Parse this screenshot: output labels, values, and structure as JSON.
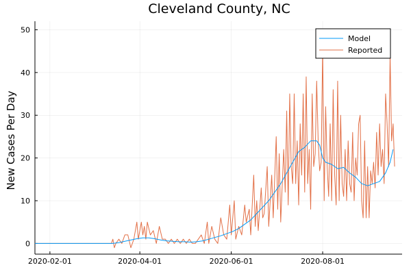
{
  "chart_data": {
    "type": "line",
    "title": "Cleveland County, NC",
    "xlabel": "",
    "ylabel": "New Cases Per Day",
    "x_range": [
      "2020-01-22",
      "2020-09-23"
    ],
    "ylim": [
      -2.5,
      52
    ],
    "x_ticks": [
      "2020-02-01",
      "2020-04-01",
      "2020-06-01",
      "2020-08-01"
    ],
    "y_ticks": [
      0,
      10,
      20,
      30,
      40,
      50
    ],
    "grid": true,
    "legend_position": "top-right",
    "series": [
      {
        "name": "Model",
        "color": "#009AFA",
        "points": [
          [
            "2020-01-22",
            0
          ],
          [
            "2020-03-14",
            0
          ],
          [
            "2020-03-18",
            0.2
          ],
          [
            "2020-03-22",
            0.5
          ],
          [
            "2020-03-26",
            0.8
          ],
          [
            "2020-03-30",
            1.1
          ],
          [
            "2020-04-03",
            1.3
          ],
          [
            "2020-04-07",
            1.3
          ],
          [
            "2020-04-11",
            1.1
          ],
          [
            "2020-04-15",
            0.8
          ],
          [
            "2020-04-19",
            0.6
          ],
          [
            "2020-04-23",
            0.5
          ],
          [
            "2020-04-27",
            0.4
          ],
          [
            "2020-05-01",
            0.4
          ],
          [
            "2020-05-05",
            0.3
          ],
          [
            "2020-05-09",
            0.4
          ],
          [
            "2020-05-13",
            0.6
          ],
          [
            "2020-05-17",
            1.0
          ],
          [
            "2020-05-21",
            1.4
          ],
          [
            "2020-05-25",
            1.8
          ],
          [
            "2020-05-29",
            2.3
          ],
          [
            "2020-06-02",
            2.8
          ],
          [
            "2020-06-06",
            3.5
          ],
          [
            "2020-06-10",
            4.5
          ],
          [
            "2020-06-14",
            5.5
          ],
          [
            "2020-06-18",
            7.0
          ],
          [
            "2020-06-22",
            8.5
          ],
          [
            "2020-06-26",
            10.0
          ],
          [
            "2020-06-30",
            12.0
          ],
          [
            "2020-07-04",
            14.0
          ],
          [
            "2020-07-08",
            16.5
          ],
          [
            "2020-07-12",
            19.0
          ],
          [
            "2020-07-16",
            21.5
          ],
          [
            "2020-07-20",
            22.5
          ],
          [
            "2020-07-24",
            24.0
          ],
          [
            "2020-07-28",
            24.0
          ],
          [
            "2020-07-30",
            23.0
          ],
          [
            "2020-08-01",
            20.0
          ],
          [
            "2020-08-03",
            19.0
          ],
          [
            "2020-08-07",
            18.5
          ],
          [
            "2020-08-11",
            17.5
          ],
          [
            "2020-08-15",
            17.8
          ],
          [
            "2020-08-19",
            16.5
          ],
          [
            "2020-08-23",
            15.5
          ],
          [
            "2020-08-27",
            14.0
          ],
          [
            "2020-08-31",
            13.5
          ],
          [
            "2020-09-04",
            14.0
          ],
          [
            "2020-09-08",
            14.5
          ],
          [
            "2020-09-12",
            16.5
          ],
          [
            "2020-09-15",
            19.0
          ],
          [
            "2020-09-17",
            22.0
          ]
        ]
      },
      {
        "name": "Reported",
        "color": "#E26F46",
        "points": [
          [
            "2020-01-22",
            0
          ],
          [
            "2020-03-13",
            0
          ],
          [
            "2020-03-14",
            1
          ],
          [
            "2020-03-15",
            -1
          ],
          [
            "2020-03-16",
            0
          ],
          [
            "2020-03-18",
            1
          ],
          [
            "2020-03-20",
            0
          ],
          [
            "2020-03-22",
            2
          ],
          [
            "2020-03-24",
            2
          ],
          [
            "2020-03-26",
            -1
          ],
          [
            "2020-03-28",
            1
          ],
          [
            "2020-03-30",
            5
          ],
          [
            "2020-03-31",
            1
          ],
          [
            "2020-04-02",
            5
          ],
          [
            "2020-04-03",
            2
          ],
          [
            "2020-04-04",
            4
          ],
          [
            "2020-04-05",
            1
          ],
          [
            "2020-04-06",
            5
          ],
          [
            "2020-04-08",
            2
          ],
          [
            "2020-04-10",
            3
          ],
          [
            "2020-04-12",
            0
          ],
          [
            "2020-04-14",
            4
          ],
          [
            "2020-04-16",
            1
          ],
          [
            "2020-04-18",
            1
          ],
          [
            "2020-04-20",
            0
          ],
          [
            "2020-04-22",
            1
          ],
          [
            "2020-04-24",
            0
          ],
          [
            "2020-04-26",
            1
          ],
          [
            "2020-04-28",
            0
          ],
          [
            "2020-04-30",
            1
          ],
          [
            "2020-05-02",
            0
          ],
          [
            "2020-05-04",
            1
          ],
          [
            "2020-05-06",
            0
          ],
          [
            "2020-05-08",
            0
          ],
          [
            "2020-05-10",
            1
          ],
          [
            "2020-05-12",
            2
          ],
          [
            "2020-05-14",
            0
          ],
          [
            "2020-05-16",
            5
          ],
          [
            "2020-05-17",
            0
          ],
          [
            "2020-05-19",
            4
          ],
          [
            "2020-05-21",
            1
          ],
          [
            "2020-05-23",
            0
          ],
          [
            "2020-05-25",
            6
          ],
          [
            "2020-05-27",
            2
          ],
          [
            "2020-05-29",
            1
          ],
          [
            "2020-05-31",
            9
          ],
          [
            "2020-06-01",
            2
          ],
          [
            "2020-06-03",
            10
          ],
          [
            "2020-06-04",
            1
          ],
          [
            "2020-06-06",
            4
          ],
          [
            "2020-06-08",
            2
          ],
          [
            "2020-06-10",
            9
          ],
          [
            "2020-06-11",
            5
          ],
          [
            "2020-06-13",
            8
          ],
          [
            "2020-06-14",
            2
          ],
          [
            "2020-06-16",
            16
          ],
          [
            "2020-06-17",
            4
          ],
          [
            "2020-06-18",
            10
          ],
          [
            "2020-06-19",
            3
          ],
          [
            "2020-06-21",
            13
          ],
          [
            "2020-06-22",
            6
          ],
          [
            "2020-06-23",
            7
          ],
          [
            "2020-06-25",
            18
          ],
          [
            "2020-06-26",
            4
          ],
          [
            "2020-06-27",
            10
          ],
          [
            "2020-06-28",
            16
          ],
          [
            "2020-06-29",
            6
          ],
          [
            "2020-07-01",
            25
          ],
          [
            "2020-07-02",
            8
          ],
          [
            "2020-07-03",
            21
          ],
          [
            "2020-07-04",
            5
          ],
          [
            "2020-07-06",
            22
          ],
          [
            "2020-07-07",
            12
          ],
          [
            "2020-07-08",
            31
          ],
          [
            "2020-07-09",
            9
          ],
          [
            "2020-07-10",
            35
          ],
          [
            "2020-07-11",
            18
          ],
          [
            "2020-07-12",
            14
          ],
          [
            "2020-07-13",
            35
          ],
          [
            "2020-07-14",
            14
          ],
          [
            "2020-07-15",
            24
          ],
          [
            "2020-07-16",
            9
          ],
          [
            "2020-07-17",
            28
          ],
          [
            "2020-07-18",
            16
          ],
          [
            "2020-07-19",
            35
          ],
          [
            "2020-07-20",
            12
          ],
          [
            "2020-07-21",
            39
          ],
          [
            "2020-07-22",
            14
          ],
          [
            "2020-07-23",
            22
          ],
          [
            "2020-07-24",
            8
          ],
          [
            "2020-07-25",
            35
          ],
          [
            "2020-07-26",
            18
          ],
          [
            "2020-07-27",
            21
          ],
          [
            "2020-07-28",
            38
          ],
          [
            "2020-07-29",
            24
          ],
          [
            "2020-07-30",
            17
          ],
          [
            "2020-07-31",
            19
          ],
          [
            "2020-08-01",
            46
          ],
          [
            "2020-08-02",
            10
          ],
          [
            "2020-08-03",
            32
          ],
          [
            "2020-08-04",
            18
          ],
          [
            "2020-08-05",
            11
          ],
          [
            "2020-08-06",
            28
          ],
          [
            "2020-08-07",
            10
          ],
          [
            "2020-08-08",
            36
          ],
          [
            "2020-08-09",
            16
          ],
          [
            "2020-08-10",
            9
          ],
          [
            "2020-08-11",
            38
          ],
          [
            "2020-08-12",
            10
          ],
          [
            "2020-08-13",
            30
          ],
          [
            "2020-08-14",
            14
          ],
          [
            "2020-08-15",
            11
          ],
          [
            "2020-08-16",
            22
          ],
          [
            "2020-08-17",
            10
          ],
          [
            "2020-08-18",
            24
          ],
          [
            "2020-08-19",
            14
          ],
          [
            "2020-08-20",
            12
          ],
          [
            "2020-08-21",
            26
          ],
          [
            "2020-08-22",
            10
          ],
          [
            "2020-08-23",
            20
          ],
          [
            "2020-08-24",
            16
          ],
          [
            "2020-08-25",
            28
          ],
          [
            "2020-08-26",
            30
          ],
          [
            "2020-08-27",
            10
          ],
          [
            "2020-08-28",
            6
          ],
          [
            "2020-08-29",
            24
          ],
          [
            "2020-08-30",
            6
          ],
          [
            "2020-08-31",
            18
          ],
          [
            "2020-09-01",
            6
          ],
          [
            "2020-09-02",
            17
          ],
          [
            "2020-09-03",
            14
          ],
          [
            "2020-09-04",
            19
          ],
          [
            "2020-09-05",
            13
          ],
          [
            "2020-09-06",
            26
          ],
          [
            "2020-09-07",
            16
          ],
          [
            "2020-09-08",
            28
          ],
          [
            "2020-09-09",
            18
          ],
          [
            "2020-09-10",
            22
          ],
          [
            "2020-09-11",
            14
          ],
          [
            "2020-09-12",
            35
          ],
          [
            "2020-09-13",
            28
          ],
          [
            "2020-09-14",
            18
          ],
          [
            "2020-09-15",
            44
          ],
          [
            "2020-09-16",
            24
          ],
          [
            "2020-09-17",
            28
          ],
          [
            "2020-09-18",
            18
          ]
        ]
      }
    ]
  }
}
